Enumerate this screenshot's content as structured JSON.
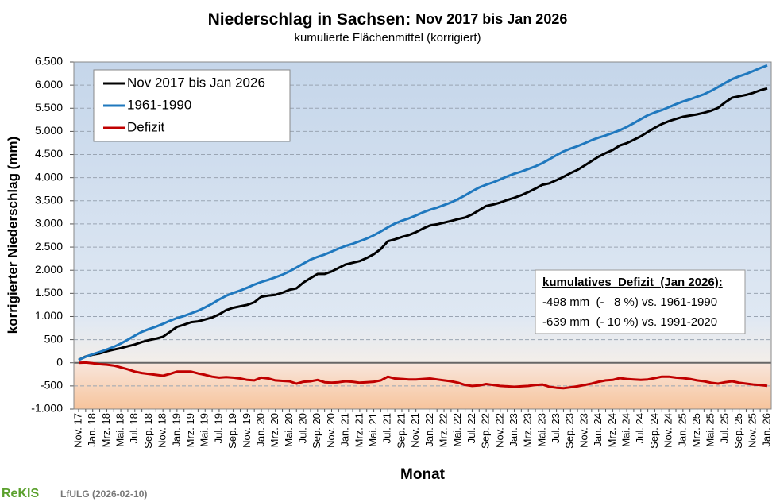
{
  "chart_data": {
    "type": "line",
    "title": "Niederschlag in Sachsen:",
    "title2": "Nov 2017 bis Jan 2026",
    "subtitle": "kumulierte Flächenmittel (korrigiert)",
    "ylabel": "korrigierter  Niederschlag  (mm)",
    "xlabel": "Monat",
    "categories": [
      "Nov. 17",
      null,
      "Jan. 18",
      null,
      "Mrz. 18",
      null,
      "Mai. 18",
      null,
      "Jul. 18",
      null,
      "Sep. 18",
      null,
      "Nov. 18",
      null,
      "Jan. 19",
      null,
      "Mrz. 19",
      null,
      "Mai. 19",
      null,
      "Jul. 19",
      null,
      "Sep. 19",
      null,
      "Nov. 19",
      null,
      "Jan. 20",
      null,
      "Mrz. 20",
      null,
      "Mai. 20",
      null,
      "Jul. 20",
      null,
      "Sep. 20",
      null,
      "Nov. 20",
      null,
      "Jan. 21",
      null,
      "Mrz. 21",
      null,
      "Mai. 21",
      null,
      "Jul. 21",
      null,
      "Sep. 21",
      null,
      "Nov. 21",
      null,
      "Jan. 22",
      null,
      "Mrz. 22",
      null,
      "Mai. 22",
      null,
      "Jul. 22",
      null,
      "Sep. 22",
      null,
      "Nov. 22",
      null,
      "Jan. 23",
      null,
      "Mrz. 23",
      null,
      "Mai. 23",
      null,
      "Jul. 23",
      null,
      "Sep. 23",
      null,
      "Nov. 23",
      null,
      "Jan. 24",
      null,
      "Mrz. 24",
      null,
      "Mai. 24",
      null,
      "Jul. 24",
      null,
      "Sep. 24",
      null,
      "Nov. 24",
      null,
      "Jan. 25",
      null,
      "Mrz. 25",
      null,
      "Mai. 25",
      null,
      "Jul. 25",
      null,
      "Sep. 25",
      null,
      "Nov. 25",
      null,
      "Jan. 26"
    ],
    "series": [
      {
        "name": "Nov 2017 bis Jan 2026",
        "color": "#000000",
        "values": [
          62,
          134,
          176,
          202,
          248,
          284,
          316,
          358,
          396,
          448,
          489,
          520,
          562,
          669,
          776,
          822,
          878,
          894,
          936,
          978,
          1046,
          1138,
          1189,
          1220,
          1252,
          1309,
          1426,
          1452,
          1468,
          1514,
          1576,
          1608,
          1736,
          1828,
          1919,
          1920,
          1972,
          2049,
          2126,
          2162,
          2198,
          2264,
          2346,
          2458,
          2626,
          2668,
          2719,
          2760,
          2822,
          2899,
          2966,
          2992,
          3028,
          3064,
          3106,
          3138,
          3206,
          3298,
          3389,
          3420,
          3462,
          3519,
          3566,
          3622,
          3688,
          3764,
          3846,
          3878,
          3946,
          4018,
          4099,
          4170,
          4262,
          4359,
          4456,
          4532,
          4598,
          4694,
          4746,
          4818,
          4896,
          4988,
          5079,
          5160,
          5222,
          5269,
          5316,
          5342,
          5368,
          5404,
          5446,
          5508,
          5626,
          5728,
          5759,
          5790,
          5832,
          5889,
          5928
        ]
      },
      {
        "name": "1961-1990",
        "color": "#1f78be",
        "values": [
          62,
          129,
          186,
          232,
          288,
          344,
          416,
          498,
          586,
          668,
          729,
          780,
          842,
          909,
          966,
          1012,
          1068,
          1124,
          1196,
          1278,
          1366,
          1448,
          1509,
          1560,
          1622,
          1689,
          1746,
          1792,
          1848,
          1904,
          1976,
          2058,
          2146,
          2228,
          2289,
          2340,
          2402,
          2469,
          2526,
          2572,
          2628,
          2684,
          2756,
          2838,
          2926,
          3008,
          3069,
          3120,
          3182,
          3249,
          3306,
          3352,
          3408,
          3464,
          3536,
          3618,
          3706,
          3788,
          3849,
          3900,
          3962,
          4029,
          4086,
          4132,
          4188,
          4244,
          4316,
          4398,
          4486,
          4568,
          4629,
          4680,
          4742,
          4809,
          4866,
          4912,
          4968,
          5024,
          5096,
          5178,
          5266,
          5348,
          5409,
          5460,
          5522,
          5589,
          5646,
          5692,
          5748,
          5804,
          5876,
          5958,
          6046,
          6128,
          6189,
          6240,
          6302,
          6369,
          6426
        ]
      },
      {
        "name": "Defizit",
        "color": "#c00000",
        "values": [
          0,
          5,
          -10,
          -30,
          -40,
          -60,
          -100,
          -140,
          -190,
          -220,
          -240,
          -260,
          -280,
          -240,
          -190,
          -190,
          -190,
          -230,
          -260,
          -300,
          -320,
          -310,
          -320,
          -340,
          -370,
          -380,
          -320,
          -340,
          -380,
          -390,
          -400,
          -450,
          -410,
          -400,
          -370,
          -420,
          -430,
          -420,
          -400,
          -410,
          -430,
          -420,
          -410,
          -380,
          -300,
          -340,
          -350,
          -360,
          -360,
          -350,
          -340,
          -360,
          -380,
          -400,
          -430,
          -480,
          -500,
          -490,
          -460,
          -480,
          -500,
          -510,
          -520,
          -510,
          -500,
          -480,
          -470,
          -520,
          -540,
          -550,
          -530,
          -510,
          -480,
          -450,
          -410,
          -380,
          -370,
          -330,
          -350,
          -360,
          -370,
          -360,
          -330,
          -300,
          -300,
          -320,
          -330,
          -350,
          -380,
          -400,
          -430,
          -450,
          -420,
          -400,
          -430,
          -450,
          -470,
          -480,
          -498
        ]
      }
    ],
    "ylim": [
      -1000,
      6500
    ],
    "yticks": [
      {
        "value": -1000,
        "label": "-1.000"
      },
      -500,
      0,
      500,
      {
        "value": 1000,
        "label": "1.000"
      },
      {
        "value": 1500,
        "label": "1.500"
      },
      {
        "value": 2000,
        "label": "2.000"
      },
      {
        "value": 2500,
        "label": "2.500"
      },
      {
        "value": 3000,
        "label": "3.000"
      },
      {
        "value": 3500,
        "label": "3.500"
      },
      {
        "value": 4000,
        "label": "4.000"
      },
      {
        "value": 4500,
        "label": "4.500"
      },
      {
        "value": 5000,
        "label": "5.000"
      },
      {
        "value": 5500,
        "label": "5.500"
      },
      {
        "value": 6000,
        "label": "6.000"
      },
      {
        "value": 6500,
        "label": "6.500"
      }
    ],
    "grid": true,
    "legend": "upper left",
    "annotations": [
      "kumulatives  Defizit  (Jan 2026):",
      "-498 mm  (-   8 %) vs. 1961-1990",
      "-639 mm  (- 10 %) vs. 1991-2020"
    ],
    "footer": {
      "logo": "ReKIS",
      "credit": "LfULG (2026-02-10)"
    }
  }
}
